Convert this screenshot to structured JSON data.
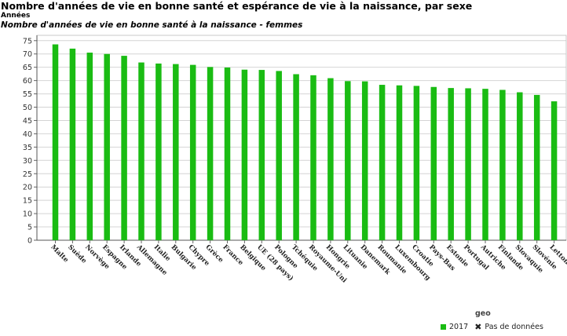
{
  "header": {
    "title": "Nombre d'années de vie en bonne santé et espérance de vie à la naissance, par sexe",
    "unit": "Années",
    "subtitle": "Nombre d'années de vie en bonne santé à la naissance - femmes"
  },
  "legend": {
    "heading": "geo",
    "series_label": "2017",
    "no_data_label": "Pas de données",
    "no_data_icon": "x-icon"
  },
  "chart_data": {
    "type": "bar",
    "categories": [
      "Malte",
      "Suède",
      "Norvège",
      "Espagne",
      "Irlande",
      "Allemagne",
      "Italie",
      "Bulgarie",
      "Chypre",
      "Grèce",
      "France",
      "Belgique",
      "UE (28 pays)",
      "Pologne",
      "Tchéquie",
      "Royaume-Uni",
      "Hongrie",
      "Lituanie",
      "Danemark",
      "Roumanie",
      "Luxembourg",
      "Croatie",
      "Pays-Bas",
      "Estonie",
      "Portugal",
      "Autriche",
      "Finlande",
      "Slovaquie",
      "Slovénie",
      "Lettonie"
    ],
    "series": [
      {
        "name": "2017",
        "values": [
          73.6,
          72.0,
          70.5,
          70.0,
          69.3,
          66.8,
          66.4,
          66.2,
          65.9,
          65.1,
          64.9,
          64.1,
          64.0,
          63.6,
          62.4,
          62.0,
          60.9,
          59.8,
          59.7,
          58.4,
          58.2,
          58.0,
          57.6,
          57.2,
          57.1,
          56.9,
          56.5,
          55.6,
          54.6,
          52.2
        ],
        "color": "#1abc13"
      }
    ],
    "ylim": [
      0,
      77
    ],
    "yticks": [
      0,
      5,
      10,
      15,
      20,
      25,
      30,
      35,
      40,
      45,
      50,
      55,
      60,
      65,
      70,
      75
    ],
    "grid": true,
    "legend_position": "bottom-right"
  }
}
